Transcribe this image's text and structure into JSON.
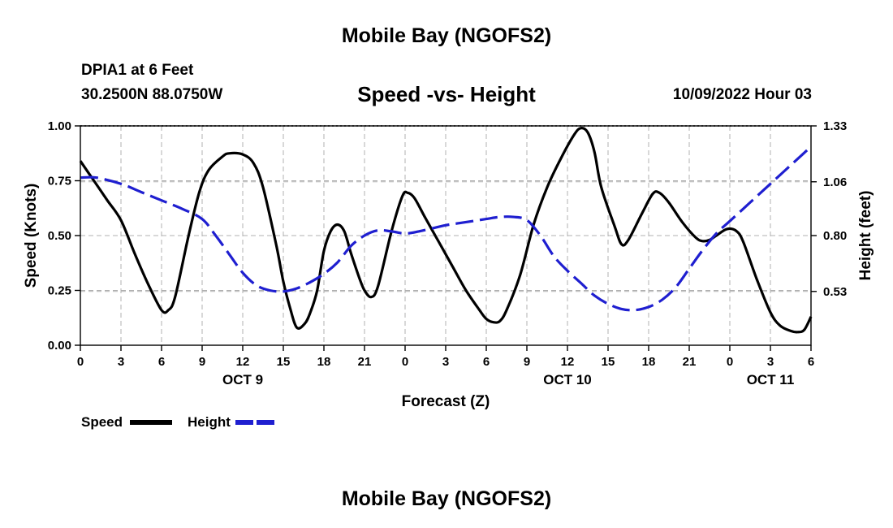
{
  "header": {
    "title": "Mobile Bay (NGOFS2)",
    "station": "DPIA1 at 6 Feet",
    "coords": "30.2500N  88.0750W",
    "date": "10/09/2022 Hour 03",
    "footer_title": "Mobile Bay (NGOFS2)"
  },
  "legend": {
    "speed_label": "Speed",
    "height_label": "Height"
  },
  "colors": {
    "speed": "#000000",
    "height": "#1f1fd0",
    "grid": "#b0b0b0"
  },
  "chart_data": {
    "type": "line",
    "title": "Speed -vs- Height",
    "xlabel": "Forecast (Z)",
    "ylabel": "Speed (Knots)",
    "y2label": "Height (feet)",
    "xlim": [
      0,
      54
    ],
    "ylim": [
      0,
      1
    ],
    "y2lim": [
      0.27,
      1.33
    ],
    "x_ticks": [
      0,
      3,
      6,
      9,
      12,
      15,
      18,
      21,
      24,
      27,
      30,
      33,
      36,
      39,
      42,
      45,
      48,
      51,
      54
    ],
    "x_tick_labels": [
      "0",
      "3",
      "6",
      "9",
      "12",
      "15",
      "18",
      "21",
      "0",
      "3",
      "6",
      "9",
      "12",
      "15",
      "18",
      "21",
      "0",
      "3",
      "6"
    ],
    "y_ticks": [
      0,
      0.25,
      0.5,
      0.75,
      1.0
    ],
    "y_tick_labels": [
      "0.00",
      "0.25",
      "0.50",
      "0.75",
      "1.00"
    ],
    "y2_ticks": [
      0.53,
      0.8,
      1.06,
      1.33
    ],
    "y2_tick_labels": [
      "0.53",
      "0.80",
      "1.06",
      "1.33"
    ],
    "day_labels": [
      {
        "x": 12,
        "label": "OCT 9"
      },
      {
        "x": 36,
        "label": "OCT 10"
      },
      {
        "x": 51,
        "label": "OCT 11"
      }
    ],
    "series": [
      {
        "name": "Speed",
        "axis": "left",
        "style": "solid",
        "points": [
          [
            0,
            0.84
          ],
          [
            1,
            0.75
          ],
          [
            2,
            0.66
          ],
          [
            3,
            0.57
          ],
          [
            4,
            0.42
          ],
          [
            5,
            0.28
          ],
          [
            6,
            0.16
          ],
          [
            6.5,
            0.16
          ],
          [
            7,
            0.22
          ],
          [
            8,
            0.5
          ],
          [
            8.8,
            0.7
          ],
          [
            9.5,
            0.8
          ],
          [
            10.5,
            0.86
          ],
          [
            11,
            0.875
          ],
          [
            12,
            0.87
          ],
          [
            12.8,
            0.83
          ],
          [
            13.5,
            0.72
          ],
          [
            14.5,
            0.45
          ],
          [
            15,
            0.29
          ],
          [
            15.5,
            0.17
          ],
          [
            16,
            0.08
          ],
          [
            16.6,
            0.1
          ],
          [
            17,
            0.15
          ],
          [
            17.5,
            0.25
          ],
          [
            18,
            0.43
          ],
          [
            18.5,
            0.52
          ],
          [
            19,
            0.55
          ],
          [
            19.5,
            0.52
          ],
          [
            20,
            0.42
          ],
          [
            20.6,
            0.31
          ],
          [
            21,
            0.25
          ],
          [
            21.5,
            0.22
          ],
          [
            22,
            0.27
          ],
          [
            23,
            0.52
          ],
          [
            23.8,
            0.68
          ],
          [
            24.2,
            0.695
          ],
          [
            24.7,
            0.67
          ],
          [
            25.5,
            0.58
          ],
          [
            26.5,
            0.47
          ],
          [
            27.5,
            0.36
          ],
          [
            28.5,
            0.25
          ],
          [
            29.5,
            0.16
          ],
          [
            30,
            0.12
          ],
          [
            30.5,
            0.105
          ],
          [
            31,
            0.11
          ],
          [
            31.5,
            0.16
          ],
          [
            32.5,
            0.32
          ],
          [
            33.5,
            0.55
          ],
          [
            34.5,
            0.72
          ],
          [
            35.5,
            0.85
          ],
          [
            36.5,
            0.96
          ],
          [
            37,
            0.99
          ],
          [
            37.5,
            0.97
          ],
          [
            38,
            0.88
          ],
          [
            38.5,
            0.72
          ],
          [
            39.5,
            0.54
          ],
          [
            40,
            0.46
          ],
          [
            40.5,
            0.48
          ],
          [
            41.5,
            0.6
          ],
          [
            42.3,
            0.69
          ],
          [
            42.8,
            0.695
          ],
          [
            43.5,
            0.65
          ],
          [
            44.5,
            0.56
          ],
          [
            45.5,
            0.49
          ],
          [
            46,
            0.475
          ],
          [
            46.5,
            0.48
          ],
          [
            47,
            0.5
          ],
          [
            47.8,
            0.53
          ],
          [
            48.5,
            0.52
          ],
          [
            49,
            0.47
          ],
          [
            50,
            0.3
          ],
          [
            51,
            0.15
          ],
          [
            51.7,
            0.09
          ],
          [
            52.5,
            0.065
          ],
          [
            53,
            0.06
          ],
          [
            53.5,
            0.07
          ],
          [
            54,
            0.13
          ]
        ]
      },
      {
        "name": "Height",
        "axis": "right",
        "style": "dashed",
        "points": [
          [
            0,
            1.08
          ],
          [
            1.2,
            1.08
          ],
          [
            3,
            1.05
          ],
          [
            4.5,
            1.01
          ],
          [
            6,
            0.97
          ],
          [
            7.5,
            0.93
          ],
          [
            9,
            0.88
          ],
          [
            10,
            0.8
          ],
          [
            11,
            0.71
          ],
          [
            12,
            0.62
          ],
          [
            13,
            0.56
          ],
          [
            14,
            0.535
          ],
          [
            15,
            0.53
          ],
          [
            16,
            0.545
          ],
          [
            17,
            0.575
          ],
          [
            18,
            0.615
          ],
          [
            19,
            0.67
          ],
          [
            20,
            0.75
          ],
          [
            21,
            0.8
          ],
          [
            22,
            0.825
          ],
          [
            23,
            0.82
          ],
          [
            24,
            0.81
          ],
          [
            25,
            0.82
          ],
          [
            26,
            0.835
          ],
          [
            27,
            0.85
          ],
          [
            28,
            0.86
          ],
          [
            29,
            0.87
          ],
          [
            30,
            0.88
          ],
          [
            31,
            0.89
          ],
          [
            32,
            0.89
          ],
          [
            33,
            0.875
          ],
          [
            34,
            0.8
          ],
          [
            35,
            0.7
          ],
          [
            36,
            0.63
          ],
          [
            37,
            0.57
          ],
          [
            38,
            0.51
          ],
          [
            39,
            0.47
          ],
          [
            40,
            0.445
          ],
          [
            41,
            0.44
          ],
          [
            42,
            0.455
          ],
          [
            43,
            0.49
          ],
          [
            44,
            0.55
          ],
          [
            45,
            0.64
          ],
          [
            46,
            0.73
          ],
          [
            47,
            0.81
          ],
          [
            48,
            0.87
          ],
          [
            49,
            0.93
          ],
          [
            50,
            0.99
          ],
          [
            51,
            1.05
          ],
          [
            52,
            1.11
          ],
          [
            53,
            1.17
          ],
          [
            54,
            1.23
          ]
        ]
      }
    ]
  }
}
